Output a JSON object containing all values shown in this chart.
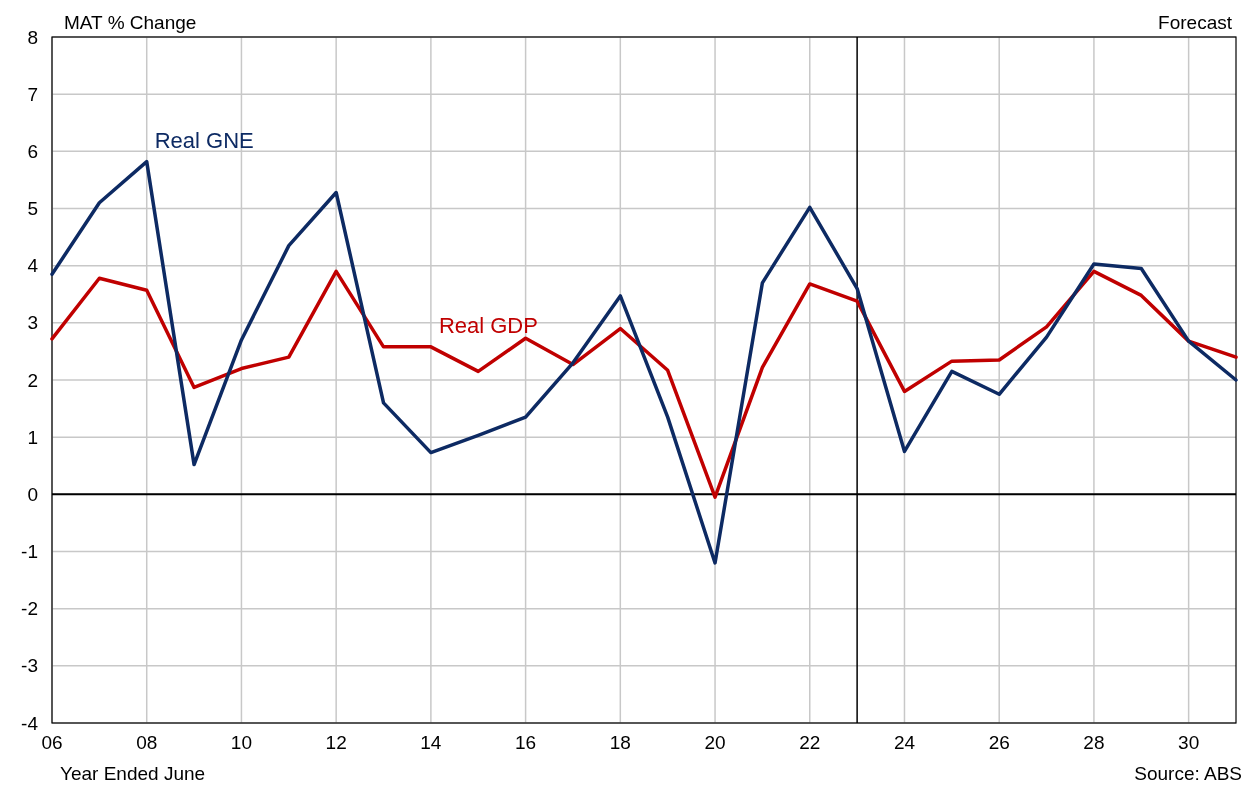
{
  "chart_data": {
    "type": "line",
    "ylabel": "MAT % Change",
    "xlabel": "Year Ended June",
    "x": [
      2006,
      2007,
      2008,
      2009,
      2010,
      2011,
      2012,
      2013,
      2014,
      2015,
      2016,
      2017,
      2018,
      2019,
      2020,
      2021,
      2022,
      2023,
      2024,
      2025,
      2026,
      2027,
      2028,
      2029,
      2030,
      2031
    ],
    "series": [
      {
        "name": "Real GDP",
        "color": "#c00000",
        "values": [
          2.72,
          3.78,
          3.57,
          1.87,
          2.2,
          2.4,
          3.9,
          2.58,
          2.58,
          2.15,
          2.73,
          2.27,
          2.9,
          2.17,
          -0.05,
          2.22,
          3.68,
          3.38,
          1.8,
          2.33,
          2.35,
          2.93,
          3.9,
          3.48,
          2.68,
          2.4
        ]
      },
      {
        "name": "Real GNE",
        "color": "#0d2a63",
        "values": [
          3.85,
          5.1,
          5.82,
          0.52,
          2.7,
          4.35,
          5.28,
          1.6,
          0.73,
          1.03,
          1.35,
          2.3,
          3.47,
          1.35,
          -1.2,
          3.7,
          5.02,
          3.6,
          0.75,
          2.15,
          1.75,
          2.75,
          4.03,
          3.95,
          2.68,
          2.0
        ]
      }
    ],
    "xlim": [
      2006,
      2031
    ],
    "xticks": [
      {
        "value": 2006,
        "label": "06"
      },
      {
        "value": 2008,
        "label": "08"
      },
      {
        "value": 2010,
        "label": "10"
      },
      {
        "value": 2012,
        "label": "12"
      },
      {
        "value": 2014,
        "label": "14"
      },
      {
        "value": 2016,
        "label": "16"
      },
      {
        "value": 2018,
        "label": "18"
      },
      {
        "value": 2020,
        "label": "20"
      },
      {
        "value": 2022,
        "label": "22"
      },
      {
        "value": 2024,
        "label": "24"
      },
      {
        "value": 2026,
        "label": "26"
      },
      {
        "value": 2028,
        "label": "28"
      },
      {
        "value": 2030,
        "label": "30"
      }
    ],
    "ylim": [
      -4,
      8
    ],
    "yticks": [
      -4,
      -3,
      -2,
      -1,
      0,
      1,
      2,
      3,
      4,
      5,
      6,
      7,
      8
    ],
    "grid": true,
    "marker": "none",
    "line_style": "solid",
    "ref_lines": [
      {
        "axis": "y",
        "value": 0,
        "color": "#000000"
      },
      {
        "axis": "x",
        "value": 2023,
        "label": "Forecast",
        "color": "#000000"
      }
    ],
    "annotations": [
      "Source: ABS"
    ]
  }
}
